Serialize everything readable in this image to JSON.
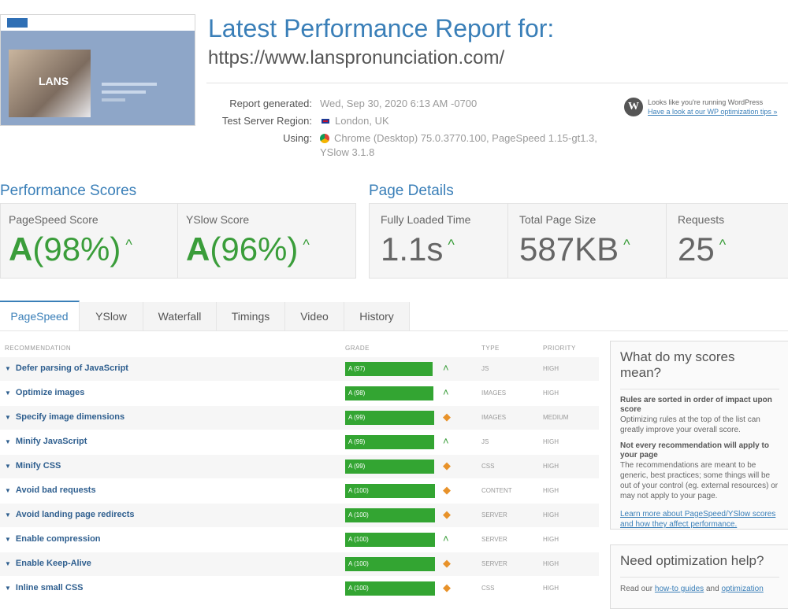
{
  "header": {
    "title": "Latest Performance Report for:",
    "url": "https://www.lanspronunciation.com/",
    "meta": [
      {
        "label": "Report generated:",
        "value": "Wed, Sep 30, 2020 6:13 AM -0700"
      },
      {
        "label": "Test Server Region:",
        "value": "London, UK"
      },
      {
        "label": "Using:",
        "value": "Chrome (Desktop) 75.0.3770.100, PageSpeed 1.15-gt1.3,",
        "value2": "YSlow 3.1.8"
      }
    ],
    "wordpress": {
      "text": "Looks like you're running WordPress",
      "link": "Have a look at our WP optimization tips »"
    },
    "thumbnail_text": "LANS"
  },
  "scores": {
    "title": "Performance Scores",
    "items": [
      {
        "label": "PageSpeed Score",
        "grade": "A",
        "pct": "(98%)"
      },
      {
        "label": "YSlow Score",
        "grade": "A",
        "pct": "(96%)"
      }
    ]
  },
  "page_details": {
    "title": "Page Details",
    "items": [
      {
        "label": "Fully Loaded Time",
        "value": "1.1s"
      },
      {
        "label": "Total Page Size",
        "value": "587KB"
      },
      {
        "label": "Requests",
        "value": "25"
      }
    ]
  },
  "tabs": [
    "PageSpeed",
    "YSlow",
    "Waterfall",
    "Timings",
    "Video",
    "History"
  ],
  "active_tab": "PageSpeed",
  "table": {
    "headers": {
      "recommendation": "RECOMMENDATION",
      "grade": "GRADE",
      "type": "TYPE",
      "priority": "PRIORITY"
    },
    "rows": [
      {
        "name": "Defer parsing of JavaScript",
        "grade": "A (97)",
        "score": 97,
        "icon": "up",
        "type": "JS",
        "priority": "HIGH"
      },
      {
        "name": "Optimize images",
        "grade": "A (98)",
        "score": 98,
        "icon": "up",
        "type": "IMAGES",
        "priority": "HIGH"
      },
      {
        "name": "Specify image dimensions",
        "grade": "A (99)",
        "score": 99,
        "icon": "diamond",
        "type": "IMAGES",
        "priority": "MEDIUM"
      },
      {
        "name": "Minify JavaScript",
        "grade": "A (99)",
        "score": 99,
        "icon": "up",
        "type": "JS",
        "priority": "HIGH"
      },
      {
        "name": "Minify CSS",
        "grade": "A (99)",
        "score": 99,
        "icon": "diamond",
        "type": "CSS",
        "priority": "HIGH"
      },
      {
        "name": "Avoid bad requests",
        "grade": "A (100)",
        "score": 100,
        "icon": "diamond",
        "type": "CONTENT",
        "priority": "HIGH"
      },
      {
        "name": "Avoid landing page redirects",
        "grade": "A (100)",
        "score": 100,
        "icon": "diamond",
        "type": "SERVER",
        "priority": "HIGH"
      },
      {
        "name": "Enable compression",
        "grade": "A (100)",
        "score": 100,
        "icon": "up",
        "type": "SERVER",
        "priority": "HIGH"
      },
      {
        "name": "Enable Keep-Alive",
        "grade": "A (100)",
        "score": 100,
        "icon": "diamond",
        "type": "SERVER",
        "priority": "HIGH"
      },
      {
        "name": "Inline small CSS",
        "grade": "A (100)",
        "score": 100,
        "icon": "diamond",
        "type": "CSS",
        "priority": "HIGH"
      }
    ]
  },
  "side_panel": {
    "title": "What do my scores mean?",
    "h1": "Rules are sorted in order of impact upon score",
    "p1": "Optimizing rules at the top of the list can greatly improve your overall score.",
    "h2": "Not every recommendation will apply to your page",
    "p2": "The recommendations are meant to be generic, best practices; some things will be out of your control (eg. external resources) or may not apply to your page.",
    "link": "Learn more about PageSpeed/YSlow scores and how they affect performance."
  },
  "help_panel": {
    "title": "Need optimization help?",
    "text": "Read our",
    "link1": "how-to guides",
    "and": "and",
    "link2": "optimization"
  },
  "colors": {
    "accent": "#3a7fb8",
    "grade_green": "#33a532",
    "priority_orange": "#e8922a"
  }
}
